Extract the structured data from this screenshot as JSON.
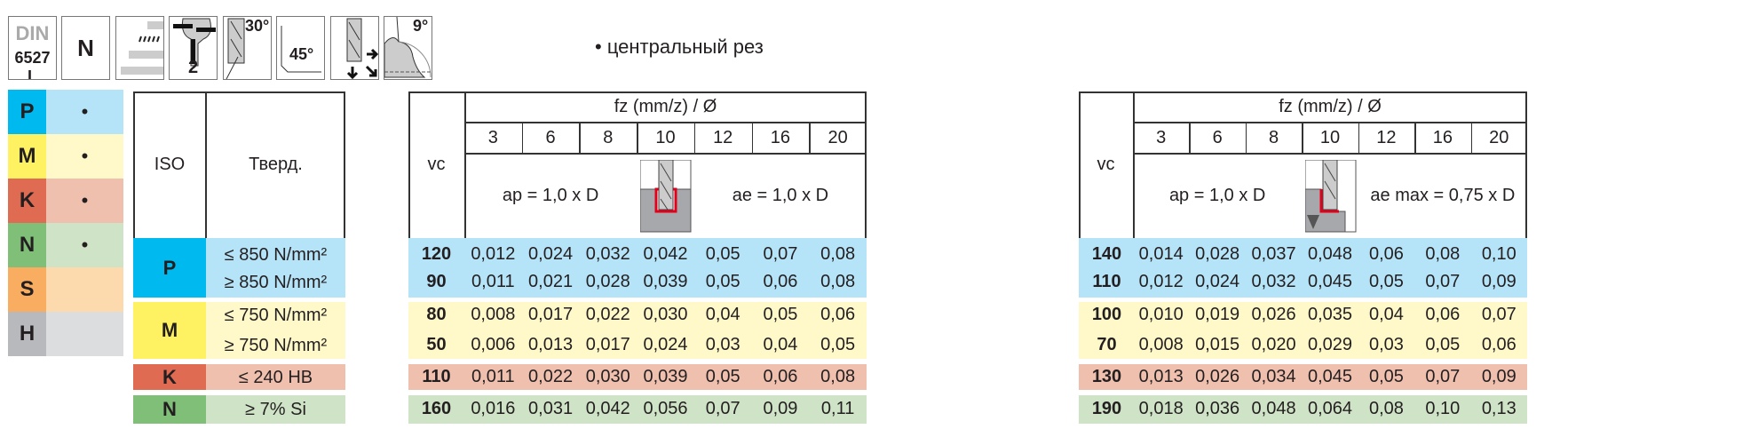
{
  "icons": [
    {
      "name": "din-standard-icon",
      "line1": "DIN",
      "line2": "6527 L"
    },
    {
      "name": "type-n-icon",
      "label": "N"
    },
    {
      "name": "tolerance-bars-icon"
    },
    {
      "name": "two-flutes-icon",
      "label": "2"
    },
    {
      "name": "helix-angle-icon",
      "label": "30°"
    },
    {
      "name": "chamfer-angle-icon",
      "label": "45°"
    },
    {
      "name": "milling-directions-icon"
    },
    {
      "name": "clearance-angle-icon",
      "label": "9°"
    }
  ],
  "note": "• центральный рез",
  "colors": {
    "P": {
      "strong": "#00b9ef",
      "light": "#b5e3f8"
    },
    "M": {
      "strong": "#fff262",
      "light": "#fff9ca"
    },
    "K": {
      "strong": "#e06b53",
      "light": "#f0c0ae"
    },
    "N": {
      "strong": "#80bf78",
      "light": "#cfe3c6"
    },
    "S": {
      "strong": "#f9ad60",
      "light": "#fdd9ae"
    },
    "H": {
      "strong": "#b8b9bc",
      "light": "#dcdddf"
    }
  },
  "legend": [
    {
      "letter": "P",
      "dot": "•"
    },
    {
      "letter": "M",
      "dot": "•"
    },
    {
      "letter": "K",
      "dot": "•"
    },
    {
      "letter": "N",
      "dot": "•"
    },
    {
      "letter": "S",
      "dot": ""
    },
    {
      "letter": "H",
      "dot": ""
    }
  ],
  "material_table": {
    "headers": {
      "iso": "ISO",
      "hardness": "Тверд."
    },
    "groups": [
      {
        "iso": "P",
        "hardness": [
          "≤ 850 N/mm²",
          "≥ 850 N/mm²"
        ]
      },
      {
        "iso": "M",
        "hardness": [
          "≤ 750 N/mm²",
          "≥ 750 N/mm²"
        ]
      },
      {
        "iso": "K",
        "hardness": [
          "≤ 240 HB"
        ]
      },
      {
        "iso": "N",
        "hardness": [
          "≥ 7% Si"
        ]
      }
    ]
  },
  "feed_tables": [
    {
      "vc_label": "vc",
      "fz_label": "fz (mm/z) / Ø",
      "diameters": [
        "3",
        "6",
        "8",
        "10",
        "12",
        "16",
        "20"
      ],
      "ap": "ap = 1,0 x D",
      "ae": "ae = 1,0 x D",
      "diagram": "slot",
      "groups": [
        {
          "iso": "P",
          "rows": [
            {
              "vc": "120",
              "fz": [
                "0,012",
                "0,024",
                "0,032",
                "0,042",
                "0,05",
                "0,07",
                "0,08"
              ]
            },
            {
              "vc": "90",
              "fz": [
                "0,011",
                "0,021",
                "0,028",
                "0,039",
                "0,05",
                "0,06",
                "0,08"
              ]
            }
          ]
        },
        {
          "iso": "M",
          "rows": [
            {
              "vc": "80",
              "fz": [
                "0,008",
                "0,017",
                "0,022",
                "0,030",
                "0,04",
                "0,05",
                "0,06"
              ]
            },
            {
              "vc": "50",
              "fz": [
                "0,006",
                "0,013",
                "0,017",
                "0,024",
                "0,03",
                "0,04",
                "0,05"
              ]
            }
          ]
        },
        {
          "iso": "K",
          "rows": [
            {
              "vc": "110",
              "fz": [
                "0,011",
                "0,022",
                "0,030",
                "0,039",
                "0,05",
                "0,06",
                "0,08"
              ]
            }
          ]
        },
        {
          "iso": "N",
          "rows": [
            {
              "vc": "160",
              "fz": [
                "0,016",
                "0,031",
                "0,042",
                "0,056",
                "0,07",
                "0,09",
                "0,11"
              ]
            }
          ]
        }
      ]
    },
    {
      "vc_label": "vc",
      "fz_label": "fz (mm/z) / Ø",
      "diameters": [
        "3",
        "6",
        "8",
        "10",
        "12",
        "16",
        "20"
      ],
      "ap": "ap = 1,0 x D",
      "ae": "ae max = 0,75 x D",
      "diagram": "side",
      "groups": [
        {
          "iso": "P",
          "rows": [
            {
              "vc": "140",
              "fz": [
                "0,014",
                "0,028",
                "0,037",
                "0,048",
                "0,06",
                "0,08",
                "0,10"
              ]
            },
            {
              "vc": "110",
              "fz": [
                "0,012",
                "0,024",
                "0,032",
                "0,045",
                "0,05",
                "0,07",
                "0,09"
              ]
            }
          ]
        },
        {
          "iso": "M",
          "rows": [
            {
              "vc": "100",
              "fz": [
                "0,010",
                "0,019",
                "0,026",
                "0,035",
                "0,04",
                "0,06",
                "0,07"
              ]
            },
            {
              "vc": "70",
              "fz": [
                "0,008",
                "0,015",
                "0,020",
                "0,029",
                "0,03",
                "0,05",
                "0,06"
              ]
            }
          ]
        },
        {
          "iso": "K",
          "rows": [
            {
              "vc": "130",
              "fz": [
                "0,013",
                "0,026",
                "0,034",
                "0,045",
                "0,05",
                "0,07",
                "0,09"
              ]
            }
          ]
        },
        {
          "iso": "N",
          "rows": [
            {
              "vc": "190",
              "fz": [
                "0,018",
                "0,036",
                "0,048",
                "0,064",
                "0,08",
                "0,10",
                "0,13"
              ]
            }
          ]
        }
      ]
    }
  ]
}
